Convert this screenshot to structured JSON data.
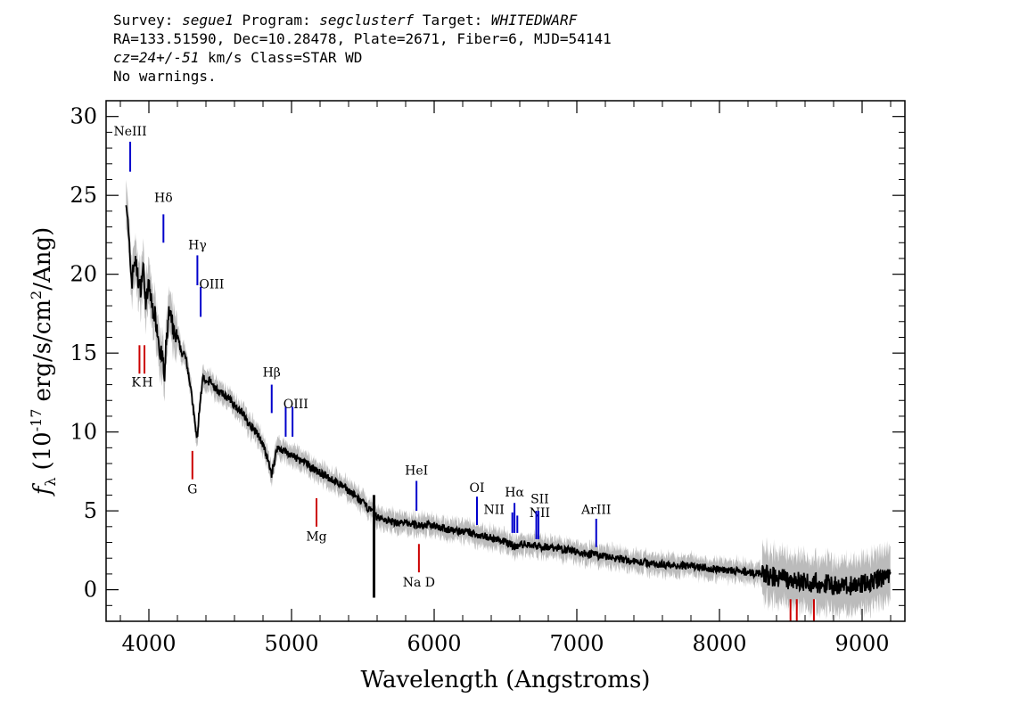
{
  "header": {
    "survey_label": "Survey:",
    "survey": "segue1",
    "program_label": "Program:",
    "program": "segclusterf",
    "target_label": "Target:",
    "target": "WHITEDWARF",
    "line2": "RA=133.51590, Dec=10.28478, Plate=2671, Fiber=6, MJD=54141",
    "cz": "cz=24+/-51",
    "cz_rest": "km/s Class=STAR WD",
    "line4": "No warnings."
  },
  "chart_data": {
    "type": "line",
    "xlabel": "Wavelength (Angstroms)",
    "ylabel_sym": "f",
    "ylabel_sub": "λ",
    "ylabel_pre": "(10",
    "ylabel_exp": "-17",
    "ylabel_mid": "erg/s/cm",
    "ylabel_exp2": "2",
    "ylabel_post": "/Ang)",
    "xlim": [
      3700,
      9300
    ],
    "ylim": [
      -2,
      31
    ],
    "xticks": [
      4000,
      5000,
      6000,
      7000,
      8000,
      9000
    ],
    "yticks": [
      0,
      5,
      10,
      15,
      20,
      25,
      30
    ],
    "grid": false,
    "colors": {
      "flux": "#000000",
      "error": "#bbbbbb",
      "emission": "#0000cc",
      "absorption": "#cc0000"
    },
    "series": [
      {
        "role": "flux",
        "x": [
          3840,
          3860,
          3880,
          3900,
          3920,
          3940,
          3960,
          3980,
          4000,
          4020,
          4040,
          4060,
          4080,
          4100,
          4110,
          4120,
          4140,
          4160,
          4180,
          4200,
          4230,
          4260,
          4290,
          4310,
          4330,
          4340,
          4350,
          4360,
          4380,
          4400,
          4430,
          4460,
          4500,
          4550,
          4600,
          4650,
          4700,
          4750,
          4780,
          4810,
          4840,
          4861,
          4880,
          4900,
          4950,
          5000,
          5100,
          5200,
          5300,
          5400,
          5500,
          5580,
          5600,
          5700,
          5800,
          5900,
          6000,
          6100,
          6200,
          6300,
          6400,
          6500,
          6540,
          6563,
          6590,
          6650,
          6700,
          6800,
          6900,
          7000,
          7200,
          7400,
          7600,
          7800,
          8000,
          8200,
          8400,
          8500,
          8600,
          8700,
          8800,
          8900,
          9000,
          9100,
          9200
        ],
        "y": [
          25,
          22,
          19.5,
          21,
          20,
          19,
          20.5,
          18,
          19.5,
          18,
          17.5,
          16.5,
          15,
          14.5,
          13,
          15.5,
          17.5,
          17,
          16,
          16,
          15,
          14.8,
          13,
          11.5,
          10,
          9.5,
          11,
          12,
          13.5,
          13,
          13.3,
          12.8,
          12.5,
          12.2,
          11.7,
          11.3,
          10.5,
          10,
          9.6,
          8.9,
          8,
          7.3,
          8.2,
          9,
          8.8,
          8.5,
          8,
          7.4,
          6.9,
          6.3,
          5.5,
          4.8,
          4.6,
          4.3,
          4.2,
          4.1,
          4.1,
          3.8,
          3.7,
          3.5,
          3.3,
          3.0,
          2.9,
          2.7,
          2.8,
          2.9,
          2.8,
          2.7,
          2.6,
          2.4,
          2.1,
          1.8,
          1.6,
          1.5,
          1.3,
          1.1,
          0.8,
          0.6,
          0.5,
          0.4,
          0.3,
          0.2,
          0.4,
          0.6,
          0.9
        ]
      }
    ],
    "lines": [
      {
        "label": "NeIII",
        "x": 3869,
        "y1": 26.5,
        "y2": 28.4,
        "kind": "emission",
        "lx": 3869,
        "ly": 28.8
      },
      {
        "label": "Hδ",
        "x": 4102,
        "y1": 22,
        "y2": 23.8,
        "kind": "emission",
        "lx": 4102,
        "ly": 24.6
      },
      {
        "label": "Hγ",
        "x": 4340,
        "y1": 19.3,
        "y2": 21.2,
        "kind": "emission",
        "lx": 4340,
        "ly": 21.6
      },
      {
        "label": "OIII",
        "x": 4363,
        "y1": 17.3,
        "y2": 19.2,
        "kind": "emission",
        "lx": 4440,
        "ly": 19.1
      },
      {
        "label": "Hβ",
        "x": 4861,
        "y1": 11.2,
        "y2": 13,
        "kind": "emission",
        "lx": 4861,
        "ly": 13.5
      },
      {
        "label": "OIII",
        "x": 4959,
        "y1": 9.7,
        "y2": 11.6,
        "kind": "emission",
        "lx": 5030,
        "ly": 11.5
      },
      {
        "label": "",
        "x": 5007,
        "y1": 9.7,
        "y2": 11.6,
        "kind": "emission"
      },
      {
        "label": "HeI",
        "x": 5876,
        "y1": 5,
        "y2": 6.9,
        "kind": "emission",
        "lx": 5876,
        "ly": 7.3
      },
      {
        "label": "OI",
        "x": 6300,
        "y1": 4.1,
        "y2": 5.9,
        "kind": "emission",
        "lx": 6300,
        "ly": 6.2
      },
      {
        "label": "NII",
        "x": 6548,
        "y1": 3.6,
        "y2": 4.9,
        "kind": "emission",
        "lx": 6420,
        "ly": 4.8
      },
      {
        "label": "Hα",
        "x": 6563,
        "y1": 3.6,
        "y2": 5.5,
        "kind": "emission",
        "lx": 6563,
        "ly": 5.9
      },
      {
        "label": "NII",
        "x": 6583,
        "y1": 3.6,
        "y2": 4.7,
        "kind": "emission",
        "lx": 6740,
        "ly": 4.6
      },
      {
        "label": "SII",
        "x": 6716,
        "y1": 3.2,
        "y2": 5,
        "kind": "emission",
        "lx": 6740,
        "ly": 5.5
      },
      {
        "label": "",
        "x": 6731,
        "y1": 3.2,
        "y2": 5,
        "kind": "emission"
      },
      {
        "label": "ArIII",
        "x": 7136,
        "y1": 2.7,
        "y2": 4.5,
        "kind": "emission",
        "lx": 7136,
        "ly": 4.8
      },
      {
        "label": "K",
        "x": 3934,
        "y1": 13.7,
        "y2": 15.5,
        "kind": "absorption",
        "lx": 3910,
        "ly": 12.9
      },
      {
        "label": "H",
        "x": 3969,
        "y1": 13.7,
        "y2": 15.5,
        "kind": "absorption",
        "lx": 3990,
        "ly": 12.9
      },
      {
        "label": "G",
        "x": 4305,
        "y1": 7,
        "y2": 8.8,
        "kind": "absorption",
        "lx": 4305,
        "ly": 6.1
      },
      {
        "label": "Mg",
        "x": 5175,
        "y1": 4,
        "y2": 5.8,
        "kind": "absorption",
        "lx": 5175,
        "ly": 3.1
      },
      {
        "label": "Na D",
        "x": 5893,
        "y1": 1.1,
        "y2": 2.9,
        "kind": "absorption",
        "lx": 5893,
        "ly": 0.2
      },
      {
        "label": "",
        "x": 8498,
        "y1": -2,
        "y2": -0.6,
        "kind": "absorption"
      },
      {
        "label": "",
        "x": 8542,
        "y1": -2,
        "y2": -0.6,
        "kind": "absorption"
      },
      {
        "label": "",
        "x": 8662,
        "y1": -2,
        "y2": -0.6,
        "kind": "absorption"
      }
    ]
  }
}
